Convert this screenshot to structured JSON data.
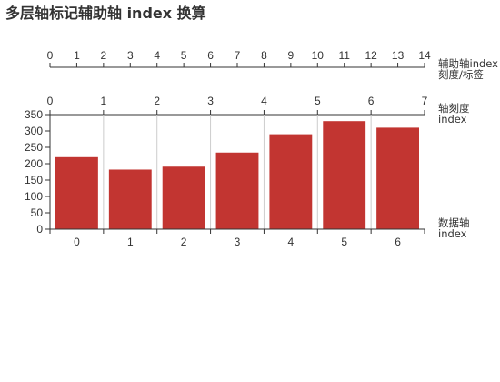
{
  "chart_data": {
    "type": "bar",
    "title": "多层轴标记辅助轴 index 换算",
    "categories": [
      "0",
      "1",
      "2",
      "3",
      "4",
      "5",
      "6"
    ],
    "series": [
      {
        "values": [
          220,
          182,
          191,
          234,
          290,
          330,
          310
        ]
      }
    ],
    "ylim": [
      0,
      350
    ],
    "y_ticks": [
      0,
      50,
      100,
      150,
      200,
      250,
      300,
      350
    ],
    "bar_color": "#c23531",
    "grid": "vertical lines at category boundaries",
    "x_axis_name": [
      "数据轴",
      "index"
    ],
    "top_axes": [
      {
        "ticks": [
          "0",
          "1",
          "2",
          "3",
          "4",
          "5",
          "6",
          "7"
        ],
        "name": [
          "轴刻度",
          "index"
        ]
      },
      {
        "ticks": [
          "0",
          "1",
          "2",
          "3",
          "4",
          "5",
          "6",
          "7",
          "8",
          "9",
          "10",
          "11",
          "12",
          "13",
          "14"
        ],
        "name": [
          "辅助轴index",
          "刻度/标签"
        ]
      }
    ]
  }
}
